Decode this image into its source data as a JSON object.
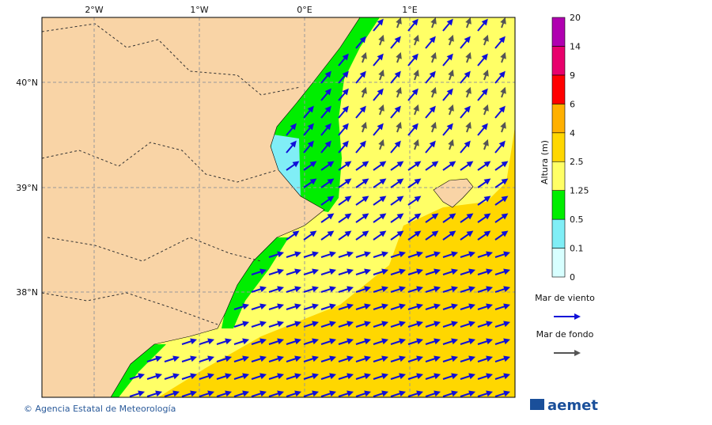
{
  "map": {
    "lon_labels": [
      "2°W",
      "1°W",
      "0°E",
      "1°E"
    ],
    "lat_labels": [
      "40°N",
      "39°N",
      "38°N"
    ]
  },
  "legend": {
    "title": "Altura (m)",
    "levels": [
      0,
      0.1,
      0.5,
      1.25,
      2.5,
      4,
      6,
      9,
      14,
      20
    ],
    "colors": [
      "#d8ffff",
      "#80eef6",
      "#00ee00",
      "#ffff66",
      "#ffd700",
      "#ffb000",
      "#ff0000",
      "#e8006c",
      "#b000b0"
    ]
  },
  "arrow_legend": [
    {
      "label": "Mar de viento",
      "color": "#1010d8"
    },
    {
      "label": "Mar de fondo",
      "color": "#555555"
    }
  ],
  "footer": {
    "credit": "© Agencia Estatal de Meteorología",
    "logo": "aemet"
  }
}
